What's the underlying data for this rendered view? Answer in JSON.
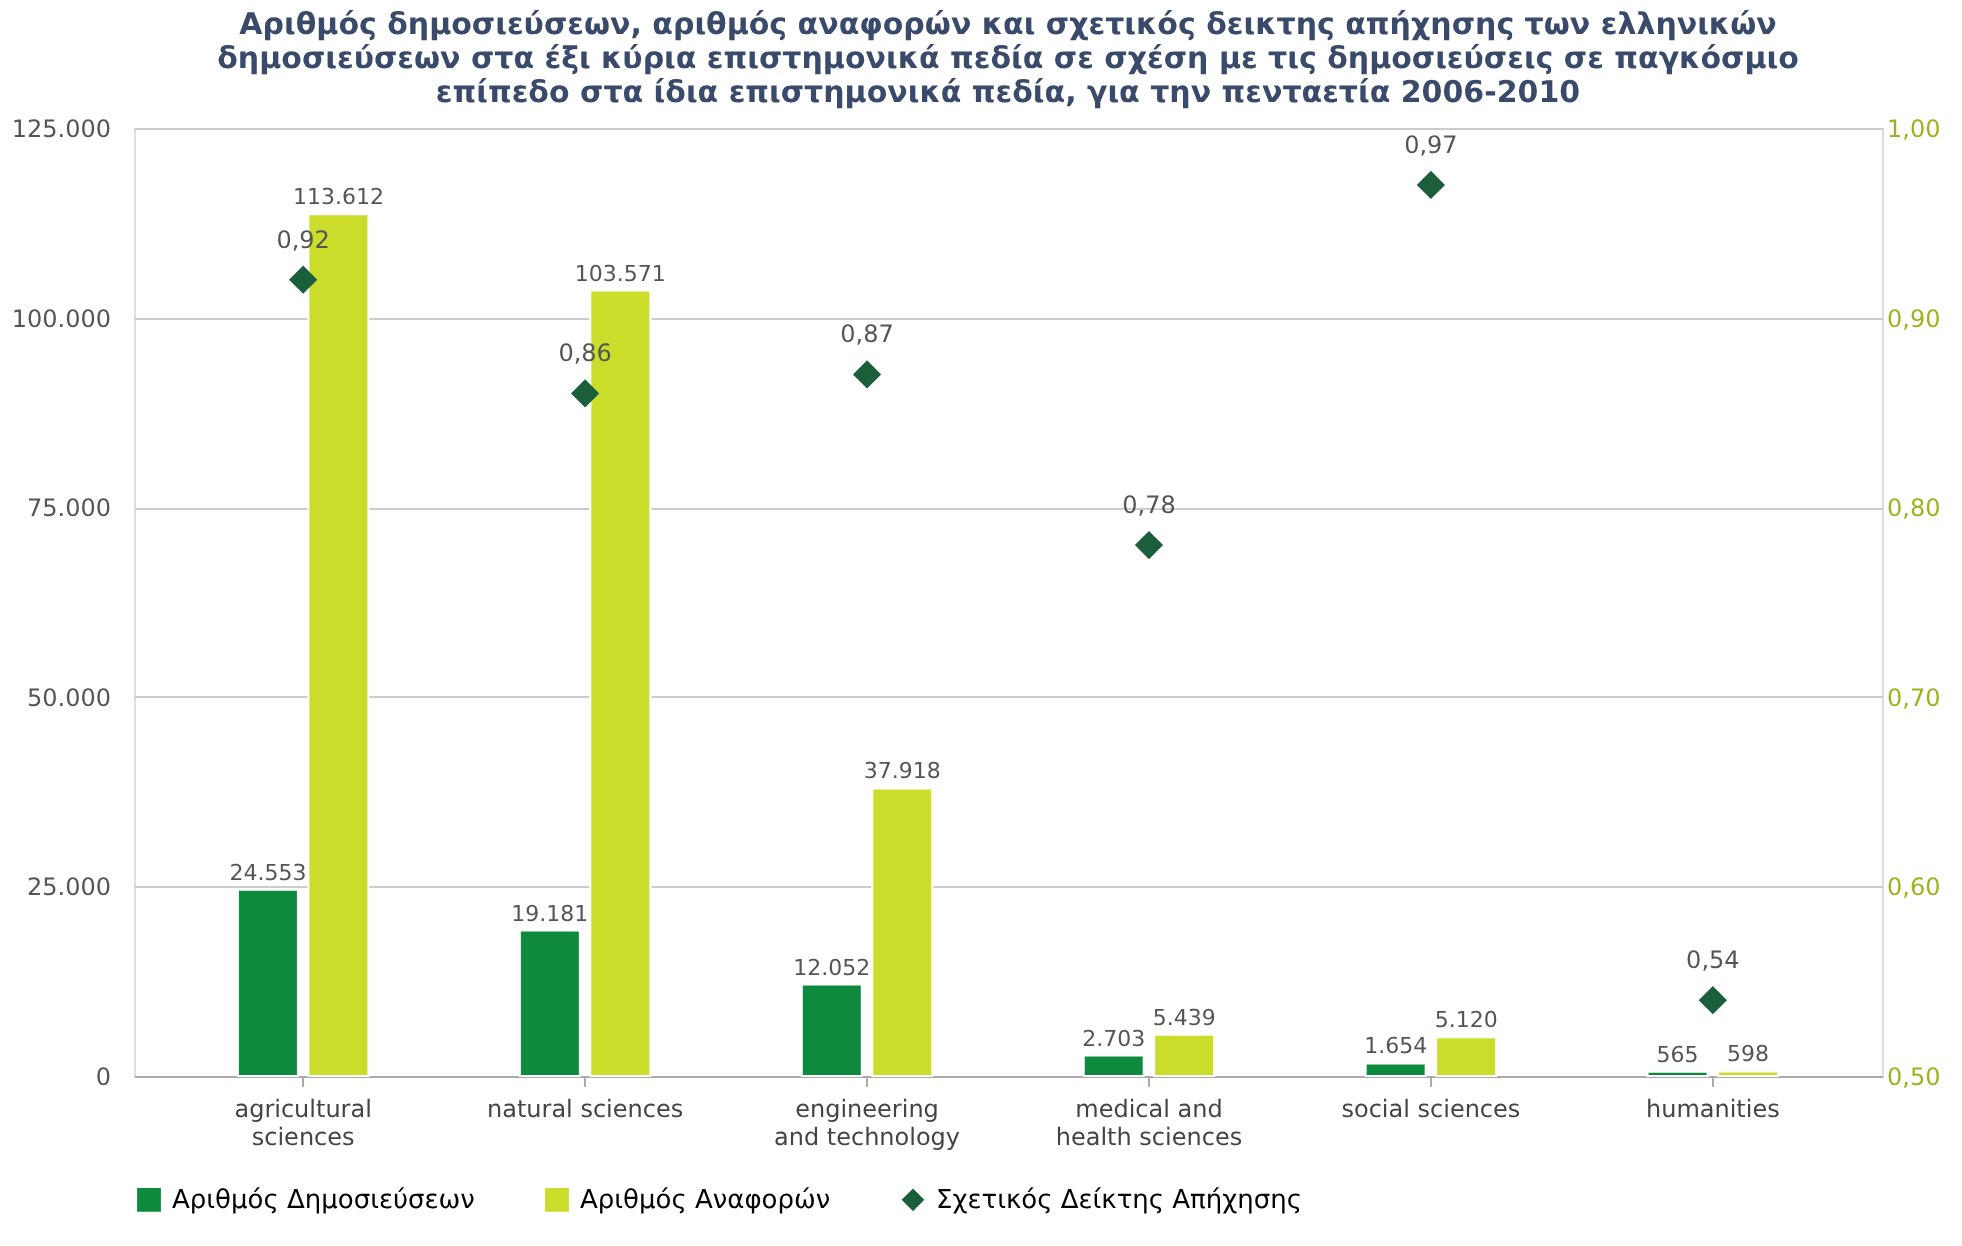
{
  "chart_data": {
    "type": "bar",
    "title": "Αριθμός δημοσιεύσεων, αριθμός αναφορών και σχετικός δεικτης απήχησης των ελληνικών δημοσιεύσεων στα έξι κύρια επιστημονικά πεδία σε σχέση με τις δημοσιεύσεις σε παγκόσμιο επίπεδο στα ίδια επιστημονικά πεδία, για την πενταετία 2006-2010",
    "categories": [
      "agricultural\nsciences",
      "natural sciences",
      "engineering\nand technology",
      "medical and\nhealth sciences",
      "social sciences",
      "humanities"
    ],
    "series": [
      {
        "name": "Αριθμός Δημοσιεύσεων",
        "color": "#0e8a3e",
        "values": [
          24553,
          19181,
          12052,
          2703,
          1654,
          565
        ],
        "value_labels": [
          "24.553",
          "19.181",
          "12.052",
          "2.703",
          "1.654",
          "565"
        ]
      },
      {
        "name": "Αριθμός Αναφορών",
        "color": "#cadd2a",
        "values": [
          113612,
          103571,
          37918,
          5439,
          5120,
          598
        ],
        "value_labels": [
          "113.612",
          "103.571",
          "37.918",
          "5.439",
          "5.120",
          "598"
        ]
      },
      {
        "name": "Σχετικός Δείκτης Απήχησης",
        "type": "scatter",
        "axis": "y2",
        "marker": "diamond",
        "color": "#1b5e3b",
        "values": [
          0.92,
          0.86,
          0.87,
          0.78,
          0.97,
          0.54
        ],
        "value_labels": [
          "0,92",
          "0,86",
          "0,87",
          "0,78",
          "0,97",
          "0,54"
        ]
      }
    ],
    "ylim": [
      0,
      125000
    ],
    "yticks": [
      {
        "value": 0,
        "label": "0"
      },
      {
        "value": 25000,
        "label": "25.000"
      },
      {
        "value": 50000,
        "label": "50.000"
      },
      {
        "value": 75000,
        "label": "75.000"
      },
      {
        "value": 100000,
        "label": "100.000"
      },
      {
        "value": 125000,
        "label": "125.000"
      }
    ],
    "y2lim": [
      0.5,
      1.0
    ],
    "y2ticks": [
      {
        "value": 0.5,
        "label": "0,50"
      },
      {
        "value": 0.6,
        "label": "0,60"
      },
      {
        "value": 0.7,
        "label": "0,70"
      },
      {
        "value": 0.8,
        "label": "0,80"
      },
      {
        "value": 0.9,
        "label": "0,90"
      },
      {
        "value": 1.0,
        "label": "1,00"
      }
    ],
    "grid": "y",
    "legend": "bottom"
  }
}
